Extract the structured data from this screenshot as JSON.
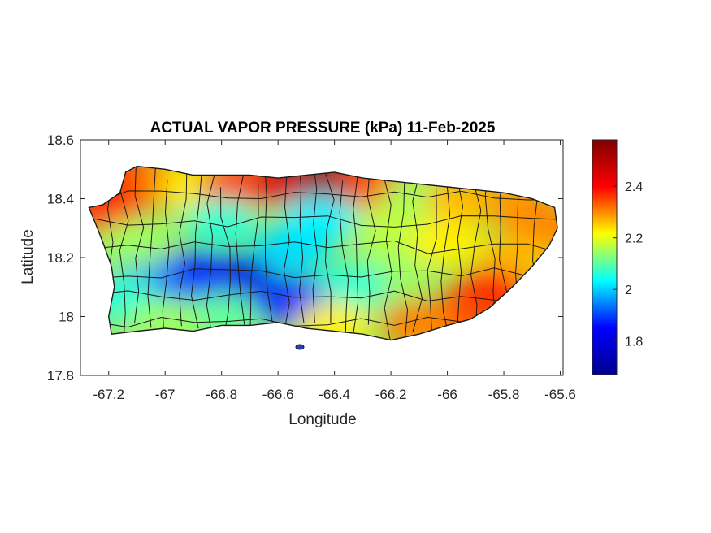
{
  "chart_data": {
    "type": "heatmap",
    "title": "ACTUAL VAPOR PRESSURE (kPa) 11-Feb-2025",
    "xlabel": "Longitude",
    "ylabel": "Latitude",
    "xlim": [
      -67.3,
      -65.59
    ],
    "ylim": [
      17.8,
      18.6
    ],
    "x_ticks": [
      -67.2,
      -67,
      -66.8,
      -66.6,
      -66.4,
      -66.2,
      -66,
      -65.8,
      -65.6
    ],
    "x_tick_labels": [
      "-67.2",
      "-67",
      "-66.8",
      "-66.6",
      "-66.4",
      "-66.2",
      "-66",
      "-65.8",
      "-65.6"
    ],
    "y_ticks": [
      17.8,
      18,
      18.2,
      18.4,
      18.6
    ],
    "y_tick_labels": [
      "17.8",
      "18",
      "18.2",
      "18.4",
      "18.6"
    ],
    "colorbar": {
      "colormap": "jet",
      "range": [
        1.67,
        2.58
      ],
      "ticks": [
        1.8,
        2,
        2.2,
        2.4
      ],
      "tick_labels": [
        "1.8",
        "2",
        "2.2",
        "2.4"
      ],
      "placement": "right",
      "colors": [
        "#00008f",
        "#0000ff",
        "#00ffff",
        "#ffff00",
        "#ff0000",
        "#800000"
      ]
    },
    "region_outline": [
      [
        -67.27,
        18.37
      ],
      [
        -67.22,
        18.38
      ],
      [
        -67.16,
        18.42
      ],
      [
        -67.14,
        18.49
      ],
      [
        -67.1,
        18.51
      ],
      [
        -67.0,
        18.5
      ],
      [
        -66.9,
        18.48
      ],
      [
        -66.8,
        18.48
      ],
      [
        -66.7,
        18.48
      ],
      [
        -66.6,
        18.47
      ],
      [
        -66.5,
        18.48
      ],
      [
        -66.4,
        18.49
      ],
      [
        -66.3,
        18.47
      ],
      [
        -66.2,
        18.46
      ],
      [
        -66.1,
        18.45
      ],
      [
        -66.0,
        18.44
      ],
      [
        -65.9,
        18.43
      ],
      [
        -65.8,
        18.42
      ],
      [
        -65.7,
        18.4
      ],
      [
        -65.62,
        18.37
      ],
      [
        -65.61,
        18.3
      ],
      [
        -65.64,
        18.24
      ],
      [
        -65.7,
        18.17
      ],
      [
        -65.77,
        18.1
      ],
      [
        -65.85,
        18.03
      ],
      [
        -65.92,
        17.99
      ],
      [
        -66.0,
        17.97
      ],
      [
        -66.1,
        17.94
      ],
      [
        -66.2,
        17.92
      ],
      [
        -66.3,
        17.94
      ],
      [
        -66.4,
        17.95
      ],
      [
        -66.5,
        17.96
      ],
      [
        -66.6,
        17.98
      ],
      [
        -66.7,
        17.97
      ],
      [
        -66.8,
        17.97
      ],
      [
        -66.9,
        17.95
      ],
      [
        -67.0,
        17.96
      ],
      [
        -67.1,
        17.95
      ],
      [
        -67.19,
        17.94
      ],
      [
        -67.2,
        18.0
      ],
      [
        -67.18,
        18.1
      ],
      [
        -67.19,
        18.17
      ],
      [
        -67.22,
        18.25
      ],
      [
        -67.24,
        18.3
      ]
    ],
    "field_samples": [
      {
        "lon": -67.2,
        "lat": 18.36,
        "value": 2.45
      },
      {
        "lon": -67.1,
        "lat": 18.47,
        "value": 2.42
      },
      {
        "lon": -66.98,
        "lat": 18.45,
        "value": 2.35
      },
      {
        "lon": -66.88,
        "lat": 18.44,
        "value": 2.25
      },
      {
        "lon": -66.75,
        "lat": 18.44,
        "value": 2.42
      },
      {
        "lon": -66.55,
        "lat": 18.46,
        "value": 2.5
      },
      {
        "lon": -66.4,
        "lat": 18.47,
        "value": 2.56
      },
      {
        "lon": -66.25,
        "lat": 18.45,
        "value": 2.4
      },
      {
        "lon": -66.1,
        "lat": 18.4,
        "value": 2.15
      },
      {
        "lon": -65.95,
        "lat": 18.4,
        "value": 2.3
      },
      {
        "lon": -65.75,
        "lat": 18.38,
        "value": 2.33
      },
      {
        "lon": -65.65,
        "lat": 18.3,
        "value": 2.35
      },
      {
        "lon": -65.75,
        "lat": 18.2,
        "value": 2.3
      },
      {
        "lon": -65.85,
        "lat": 18.08,
        "value": 2.44
      },
      {
        "lon": -65.95,
        "lat": 18.0,
        "value": 2.4
      },
      {
        "lon": -66.1,
        "lat": 17.97,
        "value": 2.35
      },
      {
        "lon": -66.2,
        "lat": 18.15,
        "value": 2.15
      },
      {
        "lon": -66.35,
        "lat": 18.1,
        "value": 2.05
      },
      {
        "lon": -66.55,
        "lat": 18.05,
        "value": 1.82
      },
      {
        "lon": -66.55,
        "lat": 18.23,
        "value": 1.98
      },
      {
        "lon": -66.75,
        "lat": 18.13,
        "value": 1.75
      },
      {
        "lon": -66.9,
        "lat": 18.14,
        "value": 1.78
      },
      {
        "lon": -67.05,
        "lat": 18.12,
        "value": 1.88
      },
      {
        "lon": -67.15,
        "lat": 18.06,
        "value": 2.05
      },
      {
        "lon": -67.1,
        "lat": 18.25,
        "value": 2.15
      },
      {
        "lon": -66.8,
        "lat": 18.32,
        "value": 2.05
      },
      {
        "lon": -66.45,
        "lat": 18.33,
        "value": 2.0
      },
      {
        "lon": -66.2,
        "lat": 18.3,
        "value": 2.18
      },
      {
        "lon": -66.0,
        "lat": 18.25,
        "value": 2.25
      },
      {
        "lon": -66.8,
        "lat": 18.0,
        "value": 2.1
      },
      {
        "lon": -67.0,
        "lat": 17.98,
        "value": 2.15
      },
      {
        "lon": -66.4,
        "lat": 17.97,
        "value": 2.25
      }
    ]
  }
}
